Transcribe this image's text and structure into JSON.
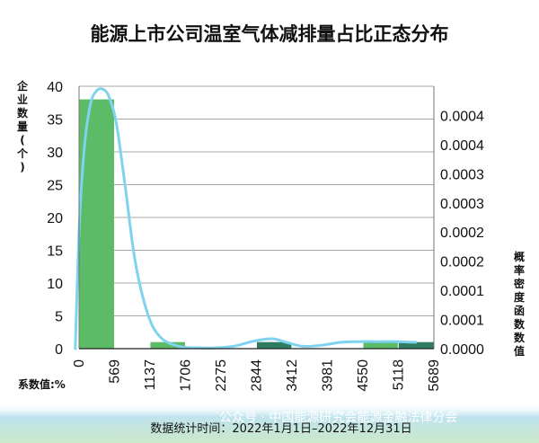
{
  "chart_data": {
    "type": "bar",
    "title": "能源上市公司温室气体减排量占比正态分布",
    "xlabel": "系数值:%",
    "ylabel_left": "企业数量(个)",
    "ylabel_right": "概率密度函数数值",
    "ylim": [
      0,
      40
    ],
    "ylim_right": [
      0,
      0.00045
    ],
    "y_ticks": [
      0,
      5,
      10,
      15,
      20,
      25,
      30,
      35,
      40
    ],
    "y2_ticks": [
      {
        "value": 0.0,
        "label": "0.0000"
      },
      {
        "value": 5e-05,
        "label": "0.0001"
      },
      {
        "value": 0.0001,
        "label": "0.0001"
      },
      {
        "value": 0.00015,
        "label": "0.0002"
      },
      {
        "value": 0.0002,
        "label": "0.0002"
      },
      {
        "value": 0.00025,
        "label": "0.0003"
      },
      {
        "value": 0.0003,
        "label": "0.0003"
      },
      {
        "value": 0.00035,
        "label": "0.0004"
      },
      {
        "value": 0.0004,
        "label": "0.0004"
      }
    ],
    "x_ticks": [
      0,
      569,
      1137,
      1706,
      2275,
      2844,
      3412,
      3981,
      4550,
      5118,
      5689
    ],
    "x_tick_labels": [
      "0",
      "569",
      "1137",
      "1706",
      "2275",
      "2844",
      "3412",
      "3981",
      "4550",
      "5118",
      "5689"
    ],
    "xlim": [
      0,
      5689
    ],
    "grid": "horizontal",
    "bars": [
      {
        "x0": 0,
        "x1": 569,
        "value": 38,
        "color": "#5cbb66"
      },
      {
        "x0": 1137,
        "x1": 1706,
        "value": 1,
        "color": "#5cbb66"
      },
      {
        "x0": 2844,
        "x1": 3412,
        "value": 1,
        "color": "#2e7d60"
      },
      {
        "x0": 4550,
        "x1": 5118,
        "value": 1,
        "color": "#5cbb66"
      },
      {
        "x0": 5118,
        "x1": 5689,
        "value": 1,
        "color": "#2e7d60"
      }
    ],
    "density_curve": {
      "color": "#7fd3ee",
      "x": [
        -60,
        0,
        80,
        180,
        280,
        380,
        480,
        600,
        750,
        900,
        1100,
        1300,
        1600,
        1900,
        2200,
        2500,
        2800,
        3100,
        3350,
        3600,
        3900,
        4200,
        4500,
        4800,
        5100,
        5400
      ],
      "y": [
        0.0,
        0.0002,
        0.00034,
        0.000418,
        0.000442,
        0.000445,
        0.000432,
        0.000385,
        0.00027,
        0.00015,
        6e-05,
        2e-05,
        4e-06,
        1.5e-06,
        1.5e-06,
        4.5e-06,
        1.3e-05,
        1.7e-05,
        1e-05,
        4e-06,
        6e-06,
        1.1e-05,
        1.2e-05,
        1.2e-05,
        1.2e-05,
        1.1e-05
      ]
    },
    "grid_color": "#a8a8a8"
  },
  "footer": {
    "period_text": "数据统计时间：2022年1月1日–2022年12月31日",
    "watermark": "公众号 · 中国能源研究会能源金融法律分会"
  },
  "colors": {
    "bar_light": "#5cbb66",
    "bar_dark": "#2e7d60",
    "curve": "#7fd3ee",
    "band_top": "#bfe3ef",
    "band_bottom": "#cbe8c8"
  }
}
